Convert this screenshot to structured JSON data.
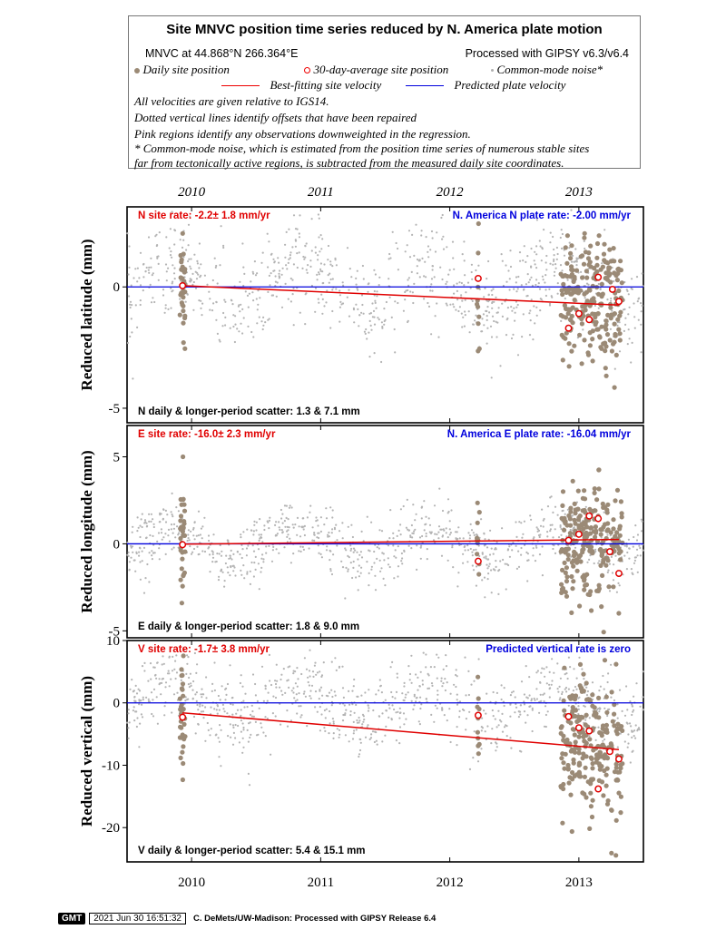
{
  "legend": {
    "title": "Site MNVC position time series reduced by N. America plate motion",
    "site_line": "MNVC at 44.868°N 266.364°E",
    "processed": "Processed with GIPSY v6.3/v6.4",
    "daily_label": "Daily site position",
    "avg_label": "30-day-average site position",
    "noise_label": "Common-mode noise*",
    "best_fit_label": "Best-fitting site velocity",
    "plate_label": "Predicted plate velocity",
    "notes": [
      "All velocities are given relative to IGS14.",
      "Dotted vertical lines identify offsets that have been repaired",
      "Pink regions identify any observations downweighted in the regression.",
      "* Common-mode noise, which is estimated from the position time series of numerous stable sites",
      "far from tectonically active regions, is subtracted from the measured daily site coordinates."
    ]
  },
  "colors": {
    "daily": "#9b8a76",
    "noise": "#b4b4b4",
    "best_fit": "#e00000",
    "plate": "#0000dd",
    "rate_text": "#e00000",
    "plate_text": "#0000dd"
  },
  "footer": {
    "logo": "GMT",
    "timestamp": "2021 Jun 30 16:51:32",
    "credit": "C. DeMets/UW-Madison: Processed with GIPSY Release 6.4"
  },
  "chart_data": [
    {
      "type": "scatter",
      "component": "N",
      "ylabel": "Reduced latitude (mm)",
      "ylim": [
        -5.6,
        3.3
      ],
      "yticks": [
        0,
        -5
      ],
      "xlim": [
        2009.5,
        2013.5
      ],
      "xticks": [
        2010,
        2011,
        2012,
        2013
      ],
      "rate_text": "N site rate:  -2.2± 1.8 mm/yr",
      "plate_text": "N. America N plate rate: -2.00 mm/yr",
      "scatter_text": "N daily & longer-period scatter:   1.3 &   7.1 mm",
      "plate_line": [
        0,
        0
      ],
      "fit_line": {
        "x": [
          2009.93,
          2013.31
        ],
        "y": [
          0.05,
          -0.75
        ]
      },
      "averages": [
        {
          "x": 2009.93,
          "y": 0.05
        },
        {
          "x": 2012.22,
          "y": 0.35
        },
        {
          "x": 2012.92,
          "y": -1.7
        },
        {
          "x": 2013.0,
          "y": -1.1
        },
        {
          "x": 2013.08,
          "y": -1.35
        },
        {
          "x": 2013.15,
          "y": 0.4
        },
        {
          "x": 2013.26,
          "y": -0.1
        },
        {
          "x": 2013.31,
          "y": -0.6
        }
      ]
    },
    {
      "type": "scatter",
      "component": "E",
      "ylabel": "Reduced longitude (mm)",
      "ylim": [
        -5.4,
        6.8
      ],
      "yticks": [
        5,
        0,
        -5
      ],
      "xlim": [
        2009.5,
        2013.5
      ],
      "xticks": [
        2010,
        2011,
        2012,
        2013
      ],
      "rate_text": "E site rate: -16.0± 2.3 mm/yr",
      "plate_text": "N. America E plate rate: -16.04 mm/yr",
      "scatter_text": "E daily & longer-period scatter:   1.8 &   9.0 mm",
      "plate_line": [
        0,
        0
      ],
      "fit_line": {
        "x": [
          2009.93,
          2013.31
        ],
        "y": [
          -0.02,
          0.25
        ]
      },
      "averages": [
        {
          "x": 2009.93,
          "y": -0.05
        },
        {
          "x": 2012.22,
          "y": -1.0
        },
        {
          "x": 2012.92,
          "y": 0.2
        },
        {
          "x": 2013.0,
          "y": 0.55
        },
        {
          "x": 2013.08,
          "y": 1.6
        },
        {
          "x": 2013.15,
          "y": 1.45
        },
        {
          "x": 2013.24,
          "y": -0.45
        },
        {
          "x": 2013.31,
          "y": -1.7
        }
      ]
    },
    {
      "type": "scatter",
      "component": "V",
      "ylabel": "Reduced vertical (mm)",
      "ylim": [
        -25.5,
        10
      ],
      "yticks": [
        10,
        0,
        -10,
        -20
      ],
      "xlim": [
        2009.5,
        2013.5
      ],
      "xticks": [
        2010,
        2011,
        2012,
        2013
      ],
      "rate_text": "V site rate:  -1.7± 3.8 mm/yr",
      "plate_text": "Predicted vertical rate is zero",
      "scatter_text": "V daily & longer-period scatter:   5.4 &  15.1 mm",
      "plate_line": [
        0,
        0
      ],
      "fit_line": {
        "x": [
          2009.93,
          2013.31
        ],
        "y": [
          -1.6,
          -7.5
        ]
      },
      "averages": [
        {
          "x": 2009.93,
          "y": -2.3
        },
        {
          "x": 2012.22,
          "y": -2.0
        },
        {
          "x": 2012.92,
          "y": -2.2
        },
        {
          "x": 2013.0,
          "y": -4.0
        },
        {
          "x": 2013.08,
          "y": -4.5
        },
        {
          "x": 2013.15,
          "y": -13.8
        },
        {
          "x": 2013.24,
          "y": -7.8
        },
        {
          "x": 2013.31,
          "y": -9.0
        }
      ]
    }
  ]
}
